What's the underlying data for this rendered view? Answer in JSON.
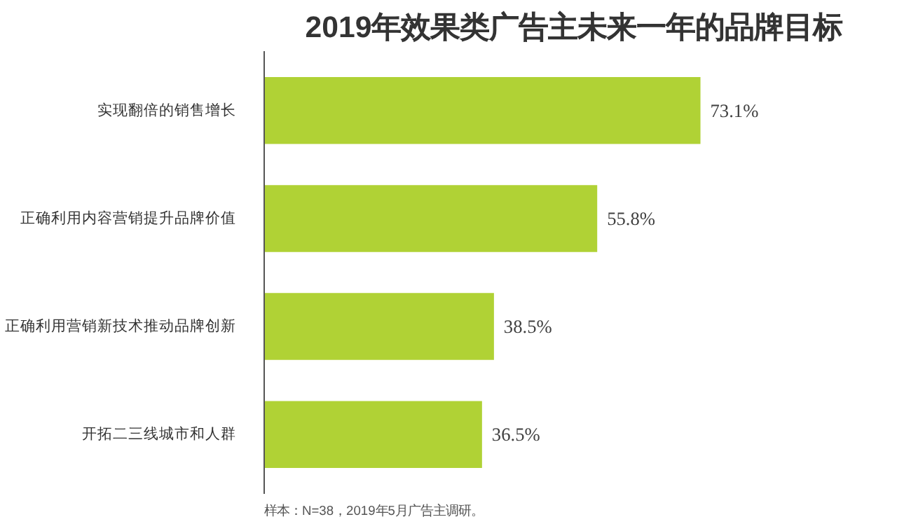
{
  "chart_data": {
    "type": "bar",
    "orientation": "horizontal",
    "title": "2019年效果类广告主未来一年的品牌目标",
    "categories": [
      "实现翻倍的销售增长",
      "正确利用内容营销提升品牌价值",
      "正确利用营销新技术推动品牌创新",
      "开拓二三线城市和人群"
    ],
    "values": [
      73.1,
      55.8,
      38.5,
      36.5
    ],
    "value_labels": [
      "73.1%",
      "55.8%",
      "38.5%",
      "36.5%"
    ],
    "color": "#b0d235",
    "grid": false,
    "annotations": [
      "样本：N=38，2019年5月广告主调研。"
    ]
  }
}
